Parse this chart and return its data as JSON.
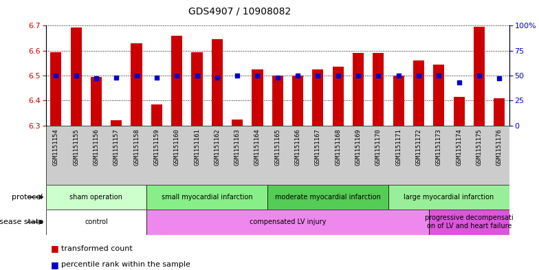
{
  "title": "GDS4907 / 10908082",
  "samples": [
    "GSM1151154",
    "GSM1151155",
    "GSM1151156",
    "GSM1151157",
    "GSM1151158",
    "GSM1151159",
    "GSM1151160",
    "GSM1151161",
    "GSM1151162",
    "GSM1151163",
    "GSM1151164",
    "GSM1151165",
    "GSM1151166",
    "GSM1151167",
    "GSM1151168",
    "GSM1151169",
    "GSM1151170",
    "GSM1151171",
    "GSM1151172",
    "GSM1151173",
    "GSM1151174",
    "GSM1151175",
    "GSM1151176"
  ],
  "transformed_count": [
    6.595,
    6.693,
    6.495,
    6.32,
    6.63,
    6.385,
    6.66,
    6.595,
    6.645,
    6.325,
    6.525,
    6.5,
    6.5,
    6.525,
    6.535,
    6.59,
    6.59,
    6.5,
    6.56,
    6.545,
    6.415,
    6.695,
    6.41
  ],
  "percentile_rank": [
    50,
    50,
    47,
    48,
    50,
    48,
    50,
    50,
    48,
    50,
    50,
    48,
    50,
    50,
    50,
    50,
    50,
    50,
    50,
    50,
    43,
    50,
    47
  ],
  "ylim_left": [
    6.3,
    6.7
  ],
  "ylim_right": [
    0,
    100
  ],
  "yticks_left": [
    6.3,
    6.4,
    6.5,
    6.6,
    6.7
  ],
  "yticks_right": [
    0,
    25,
    50,
    75,
    100
  ],
  "bar_color": "#cc0000",
  "dot_color": "#0000cc",
  "protocol_groups": [
    {
      "label": "sham operation",
      "start": 0,
      "end": 5,
      "color": "#ccffcc"
    },
    {
      "label": "small myocardial infarction",
      "start": 5,
      "end": 11,
      "color": "#88ee88"
    },
    {
      "label": "moderate myocardial infarction",
      "start": 11,
      "end": 17,
      "color": "#55cc55"
    },
    {
      "label": "large myocardial infarction",
      "start": 17,
      "end": 23,
      "color": "#99ee99"
    }
  ],
  "disease_groups": [
    {
      "label": "control",
      "start": 0,
      "end": 5,
      "color": "#ffffff"
    },
    {
      "label": "compensated LV injury",
      "start": 5,
      "end": 19,
      "color": "#ee88ee"
    },
    {
      "label": "progressive decompensati\non of LV and heart failure",
      "start": 19,
      "end": 23,
      "color": "#dd55dd"
    }
  ]
}
